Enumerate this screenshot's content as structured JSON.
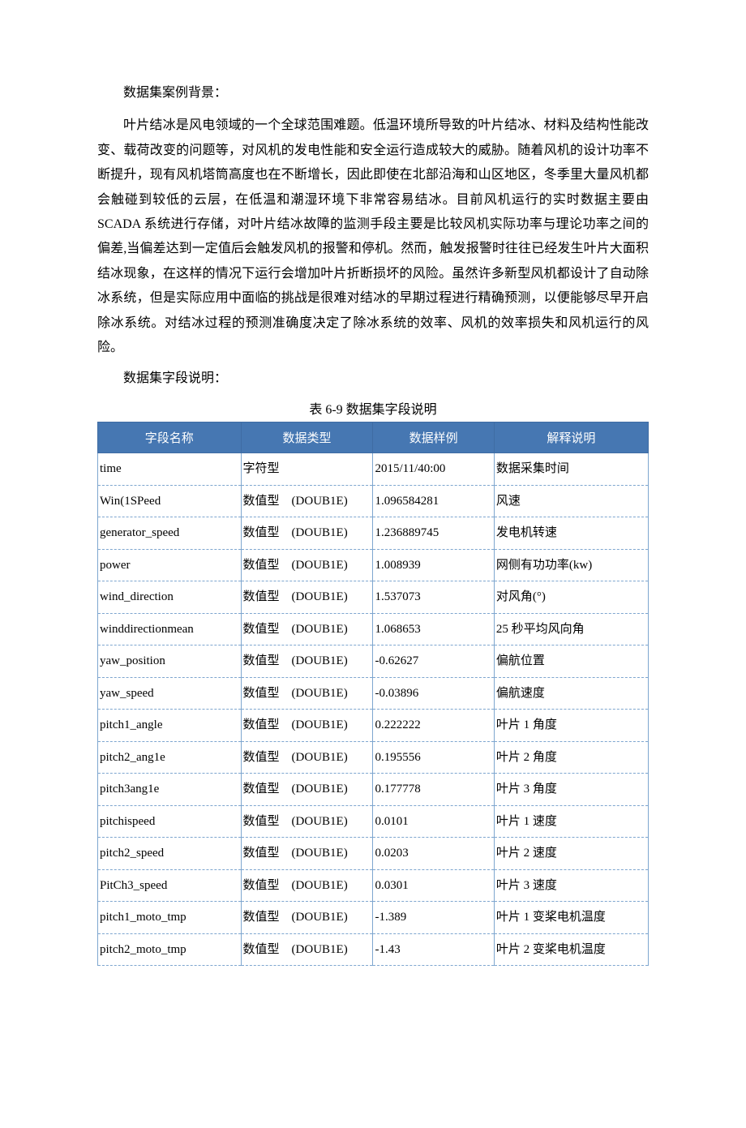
{
  "headings": {
    "h1": "数据集案例背景：",
    "h2": "数据集字段说明："
  },
  "paragraph": "叶片结冰是风电领域的一个全球范围难题。低温环境所导致的叶片结冰、材料及结构性能改变、载荷改变的问题等，对风机的发电性能和安全运行造成较大的威胁。随着风机的设计功率不断提升，现有风机塔筒高度也在不断增长，因此即使在北部沿海和山区地区，冬季里大量风机都会触碰到较低的云层，在低温和潮湿环境下非常容易结冰。目前风机运行的实时数据主要由 SCADA 系统进行存储，对叶片结冰故障的监测手段主要是比较风机实际功率与理论功率之间的偏差,当偏差达到一定值后会触发风机的报警和停机。然而，触发报警时往往已经发生叶片大面积结冰现象，在这样的情况下运行会增加叶片折断损坏的风险。虽然许多新型风机都设计了自动除冰系统，但是实际应用中面临的挑战是很难对结冰的早期过程进行精确预测，以便能够尽早开启除冰系统。对结冰过程的预测准确度决定了除冰系统的效率、风机的效率损失和风机运行的风险。",
  "table": {
    "caption": "表 6-9 数据集字段说明",
    "header_bg": "#4677b2",
    "header_fg": "#ffffff",
    "border_color": "#7ea6cf",
    "columns": [
      "字段名称",
      "数据类型",
      "数据样例",
      "解释说明"
    ],
    "rows": [
      {
        "name": "time",
        "dtype": "字符型",
        "sample": "2015/11/40:00",
        "desc": "数据采集时间"
      },
      {
        "name": "Win(1SPeed",
        "dtype": "数值型　(DOUB1E)",
        "sample": "1.096584281",
        "desc": "风速"
      },
      {
        "name": "generator_speed",
        "dtype": "数值型　(DOUB1E)",
        "sample": "1.236889745",
        "desc": "发电机转速"
      },
      {
        "name": "power",
        "dtype": "数值型　(DOUB1E)",
        "sample": "1.008939",
        "desc": "网侧有功功率(kw)"
      },
      {
        "name": "wind_direction",
        "dtype": "数值型　(DOUB1E)",
        "sample": "1.537073",
        "desc": "对风角(°)"
      },
      {
        "name": "winddirectionmean",
        "dtype": "数值型　(DOUB1E)",
        "sample": "1.068653",
        "desc": "25 秒平均风向角"
      },
      {
        "name": "yaw_position",
        "dtype": "数值型　(DOUB1E)",
        "sample": "-0.62627",
        "desc": "偏航位置"
      },
      {
        "name": "yaw_speed",
        "dtype": "数值型　(DOUB1E)",
        "sample": "-0.03896",
        "desc": "偏航速度"
      },
      {
        "name": "pitch1_angle",
        "dtype": "数值型　(DOUB1E)",
        "sample": "0.222222",
        "desc": "叶片 1 角度"
      },
      {
        "name": "pitch2_ang1e",
        "dtype": "数值型　(DOUB1E)",
        "sample": "0.195556",
        "desc": "叶片 2 角度"
      },
      {
        "name": "pitch3ang1e",
        "dtype": "数值型　(DOUB1E)",
        "sample": "0.177778",
        "desc": "叶片 3 角度"
      },
      {
        "name": "pitchispeed",
        "dtype": "数值型　(DOUB1E)",
        "sample": "0.0101",
        "desc": "叶片 1 速度"
      },
      {
        "name": "pitch2_speed",
        "dtype": "数值型　(DOUB1E)",
        "sample": "0.0203",
        "desc": "叶片 2 速度"
      },
      {
        "name": "PitCh3_speed",
        "dtype": "数值型　(DOUB1E)",
        "sample": "0.0301",
        "desc": "叶片 3 速度"
      },
      {
        "name": "pitch1_moto_tmp",
        "dtype": "数值型　(DOUB1E)",
        "sample": "-1.389",
        "desc": "叶片 1 变桨电机温度"
      },
      {
        "name": "pitch2_moto_tmp",
        "dtype": "数值型　(DOUB1E)",
        "sample": "-1.43",
        "desc": "叶片 2 变桨电机温度"
      }
    ]
  }
}
